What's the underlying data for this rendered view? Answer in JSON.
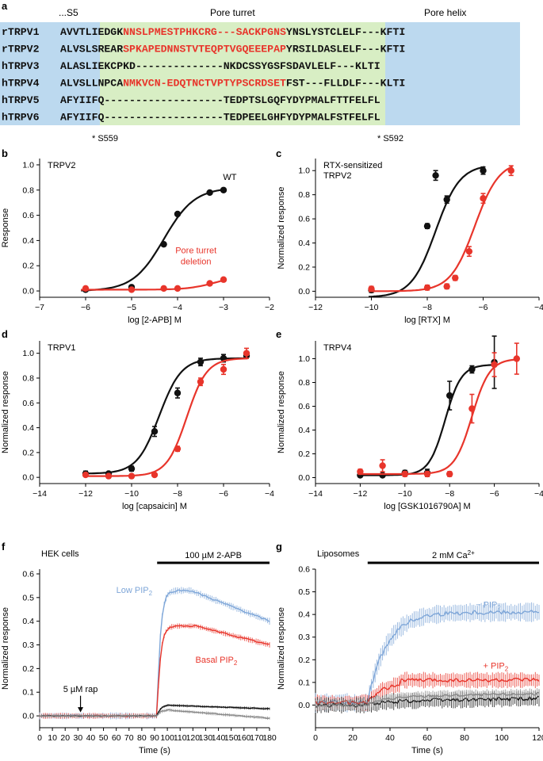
{
  "panel_labels": {
    "a": "a",
    "b": "b",
    "c": "c",
    "d": "d",
    "e": "e",
    "f": "f",
    "g": "g"
  },
  "alignment": {
    "region_labels": {
      "s5": "...S5",
      "turret": "Pore turret",
      "helix": "Pore helix"
    },
    "rows": [
      {
        "name": "rTRPV1",
        "pre": "AVVTLIEDGK",
        "red": "NNSLPMESTPHKCRG---SACKPGNS",
        "post": "YNSLYSTCLELF---KFTI"
      },
      {
        "name": "rTRPV2",
        "pre": "ALVSLSREAR",
        "red": "SPKAPEDNNSTVTEQPTVGQEEEPAP",
        "post": "YRSILDASLELF---KFTI"
      },
      {
        "name": "hTRPV3",
        "pre": "ALASLIEKCPKD--------------",
        "red": "",
        "post": "NKDCSSYGSFSDAVLELF---KLTI"
      },
      {
        "name": "hTRPV4",
        "pre": "ALVSLLNPCA",
        "red": "NMKVCN-EDQTNCTVPTYPSCRDSET",
        "post": "FST---FLLDLF---KLTI"
      },
      {
        "name": "hTRPV5",
        "pre": "AFYIIFQ-------------------",
        "red": "",
        "post": "TEDPTSLGQFYDYPMALFTTFELFL"
      },
      {
        "name": "hTRPV6",
        "pre": "AFYIIFQ-------------------",
        "red": "",
        "post": "TEDPEELGHFYDYPMALFSTFELFL"
      }
    ],
    "footnotes": [
      "* S559",
      "* S592"
    ]
  },
  "colors": {
    "black": "#111111",
    "red": "#e8352b",
    "blue": "#7ea6d8",
    "grey": "#888888",
    "bg_blue": "#bcd9ef",
    "bg_green": "#d8eec4",
    "seq_red": "#e8352b"
  },
  "chart_data": [
    {
      "id": "b",
      "type": "scatter",
      "title": "TRPV2",
      "xlabel": "log [2-APB] M",
      "ylabel": "Response",
      "xlim": [
        -7,
        -2
      ],
      "ylim": [
        -0.05,
        1.05
      ],
      "xticks": [
        "−7",
        "−6",
        "−5",
        "−4",
        "−3",
        "−2"
      ],
      "yticks": [
        "0.0",
        "0.2",
        "0.4",
        "0.6",
        "0.8",
        "1.0"
      ],
      "series": [
        {
          "name": "WT",
          "label": "WT",
          "color": "black",
          "x": [
            -6,
            -5,
            -4.3,
            -4,
            -3.3,
            -3
          ],
          "y": [
            0.01,
            0.03,
            0.37,
            0.61,
            0.78,
            0.8
          ],
          "fit": {
            "bottom": 0,
            "top": 0.82,
            "ec50": -4.3,
            "hill": 1.3
          }
        },
        {
          "name": "Pore turret deletion",
          "label": [
            "Pore turret",
            "deletion"
          ],
          "color": "red",
          "x": [
            -6,
            -5,
            -4.3,
            -4,
            -3.3,
            -3
          ],
          "y": [
            0.02,
            0.01,
            0.02,
            0.02,
            0.06,
            0.09
          ],
          "fit": {
            "bottom": 0.01,
            "top": 0.12,
            "ec50": -3.2,
            "hill": 1.5
          }
        }
      ]
    },
    {
      "id": "c",
      "type": "scatter",
      "title": "RTX-sensitized TRPV2",
      "xlabel": "log [RTX] M",
      "ylabel": "Normalized response",
      "xlim": [
        -12,
        -4
      ],
      "ylim": [
        -0.05,
        1.1
      ],
      "xticks": [
        "−12",
        "−10",
        "−8",
        "−6",
        "−4"
      ],
      "yticks": [
        "0.0",
        "0.2",
        "0.4",
        "0.6",
        "0.8",
        "1.0"
      ],
      "series": [
        {
          "name": "black",
          "color": "black",
          "x": [
            -10,
            -8,
            -7.7,
            -7.3,
            -6
          ],
          "y": [
            0.01,
            0.54,
            0.96,
            0.76,
            1.0
          ],
          "err": [
            0.02,
            0.02,
            0.04,
            0.03,
            0.03
          ],
          "fit": {
            "bottom": -0.05,
            "top": 1.05,
            "ec50": -7.7,
            "hill": 1.0
          }
        },
        {
          "name": "red",
          "color": "red",
          "x": [
            -10,
            -8,
            -7.3,
            -7,
            -6.5,
            -6,
            -5
          ],
          "y": [
            0.02,
            0.03,
            0.04,
            0.11,
            0.33,
            0.77,
            1.0
          ],
          "err": [
            0.02,
            0.02,
            0.02,
            0.02,
            0.04,
            0.04,
            0.04
          ],
          "fit": {
            "bottom": 0,
            "top": 1.08,
            "ec50": -6.3,
            "hill": 1.0
          }
        }
      ]
    },
    {
      "id": "d",
      "type": "scatter",
      "title": "TRPV1",
      "xlabel": "log [capsaicin] M",
      "ylabel": "Normalized response",
      "xlim": [
        -14,
        -4
      ],
      "ylim": [
        -0.05,
        1.1
      ],
      "xticks": [
        "−14",
        "−12",
        "−10",
        "−8",
        "−6",
        "−4"
      ],
      "yticks": [
        "0.0",
        "0.2",
        "0.4",
        "0.6",
        "0.8",
        "1.0"
      ],
      "series": [
        {
          "name": "black",
          "color": "black",
          "x": [
            -12,
            -11,
            -10,
            -9,
            -8,
            -7,
            -6,
            -5
          ],
          "y": [
            0.03,
            0.03,
            0.07,
            0.37,
            0.68,
            0.93,
            0.96,
            0.98
          ],
          "err": [
            0.02,
            0.01,
            0.02,
            0.04,
            0.04,
            0.03,
            0.03,
            0.02
          ],
          "fit": {
            "bottom": 0.03,
            "top": 0.96,
            "ec50": -8.8,
            "hill": 0.9
          }
        },
        {
          "name": "red",
          "color": "red",
          "x": [
            -12,
            -11,
            -10,
            -9,
            -8,
            -7,
            -6,
            -5
          ],
          "y": [
            0.02,
            0.01,
            0.01,
            0.02,
            0.23,
            0.77,
            0.87,
            1.0
          ],
          "err": [
            0.01,
            0.01,
            0.01,
            0.01,
            0.02,
            0.03,
            0.04,
            0.04
          ],
          "fit": {
            "bottom": 0.01,
            "top": 0.96,
            "ec50": -7.6,
            "hill": 1.0
          }
        }
      ]
    },
    {
      "id": "e",
      "type": "scatter",
      "title": "TRPV4",
      "xlabel": "log [GSK1016790A] M",
      "ylabel": "Normalized response",
      "xlim": [
        -14,
        -4
      ],
      "ylim": [
        -0.05,
        1.15
      ],
      "xticks": [
        "−14",
        "−12",
        "−10",
        "−8",
        "−6",
        "−4"
      ],
      "yticks": [
        "0.0",
        "0.2",
        "0.4",
        "0.6",
        "0.8",
        "1.0"
      ],
      "series": [
        {
          "name": "black",
          "color": "black",
          "x": [
            -12,
            -11,
            -10,
            -9,
            -8,
            -7,
            -6
          ],
          "y": [
            0.02,
            0.02,
            0.04,
            0.04,
            0.69,
            0.91,
            0.97
          ],
          "err": [
            0.01,
            0.01,
            0.02,
            0.03,
            0.12,
            0.03,
            0.22
          ],
          "fit": {
            "bottom": 0.02,
            "top": 0.95,
            "ec50": -8.2,
            "hill": 1.2
          }
        },
        {
          "name": "red",
          "color": "red",
          "x": [
            -12,
            -11,
            -10,
            -9,
            -8,
            -7,
            -6,
            -5
          ],
          "y": [
            0.05,
            0.1,
            0.03,
            0.03,
            0.03,
            0.58,
            0.95,
            1.0
          ],
          "err": [
            0.02,
            0.05,
            0.02,
            0.02,
            0.02,
            0.12,
            0.1,
            0.13
          ],
          "fit": {
            "bottom": 0.03,
            "top": 1.0,
            "ec50": -7.0,
            "hill": 1.1
          }
        }
      ]
    },
    {
      "id": "f",
      "type": "line",
      "title": "HEK cells",
      "xlabel": "Time (s)",
      "ylabel": "Normalized response",
      "xlim": [
        0,
        180
      ],
      "ylim": [
        -0.05,
        0.62
      ],
      "xticks": [
        "0",
        "10",
        "20",
        "30",
        "40",
        "50",
        "60",
        "70",
        "80",
        "90",
        "100",
        "110",
        "120",
        "130",
        "140",
        "150",
        "160",
        "170",
        "180"
      ],
      "yticks": [
        "0.0",
        "0.1",
        "0.2",
        "0.3",
        "0.4",
        "0.5",
        "0.6"
      ],
      "bar": {
        "label": "100 µM 2-APB",
        "x0": 92,
        "x1": 180
      },
      "arrow": {
        "label": "5 µM rap",
        "x": 32
      },
      "series": [
        {
          "name": "Low PIP2",
          "label": "Low PIP",
          "sub": "2",
          "color": "blue",
          "baseline": 0.0,
          "onset": 92,
          "peak": 0.53,
          "peak_t": 118,
          "end": 0.4,
          "noise": 0.012
        },
        {
          "name": "Basal PIP2",
          "label": "Basal PIP",
          "sub": "2",
          "color": "red",
          "baseline": 0.0,
          "onset": 92,
          "peak": 0.38,
          "peak_t": 122,
          "end": 0.3,
          "noise": 0.01
        },
        {
          "name": "control 1",
          "color": "black",
          "baseline": 0.0,
          "onset": 92,
          "peak": 0.045,
          "peak_t": 100,
          "end": 0.03,
          "noise": 0.005
        },
        {
          "name": "control 2",
          "color": "grey",
          "baseline": 0.0,
          "onset": 92,
          "peak": 0.025,
          "peak_t": 100,
          "end": -0.01,
          "noise": 0.006
        }
      ]
    },
    {
      "id": "g",
      "type": "line",
      "title": "Liposomes",
      "xlabel": "Time (s)",
      "ylabel": "Normalized response",
      "xlim": [
        0,
        120
      ],
      "ylim": [
        -0.1,
        0.6
      ],
      "xticks": [
        "0",
        "20",
        "40",
        "60",
        "80",
        "100",
        "120"
      ],
      "yticks": [
        "0.0",
        "0.1",
        "0.2",
        "0.3",
        "0.4",
        "0.5",
        "0.6"
      ],
      "bar": {
        "label": "2 mM Ca",
        "sup": "2+",
        "x0": 28,
        "x1": 120
      },
      "series": [
        {
          "name": "- PIP2",
          "label": "− PIP",
          "sub": "2",
          "color": "blue",
          "baseline": 0.01,
          "onset": 28,
          "peak": 0.4,
          "peak_t": 120,
          "end": 0.4,
          "noise": 0.035
        },
        {
          "name": "+ PIP2",
          "label": "+ PIP",
          "sub": "2",
          "color": "red",
          "baseline": 0.01,
          "onset": 28,
          "peak": 0.1,
          "peak_t": 45,
          "end": 0.1,
          "noise": 0.03
        },
        {
          "name": "control 1",
          "color": "black",
          "baseline": 0.0,
          "onset": 28,
          "peak": 0.02,
          "peak_t": 60,
          "end": 0.03,
          "noise": 0.03
        },
        {
          "name": "control 2",
          "color": "grey",
          "baseline": 0.0,
          "onset": 28,
          "peak": 0.04,
          "peak_t": 60,
          "end": 0.05,
          "noise": 0.02
        }
      ]
    }
  ]
}
